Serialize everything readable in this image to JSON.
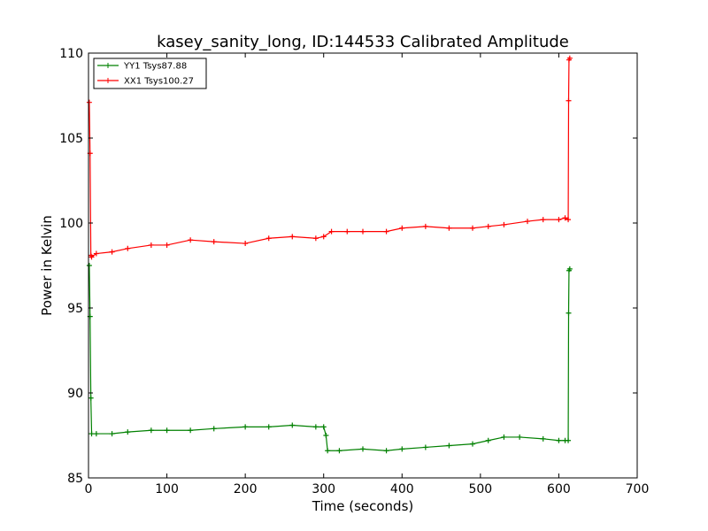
{
  "chart_data": {
    "type": "line",
    "title": "kasey_sanity_long, ID:144533 Calibrated Amplitude",
    "xlabel": "Time (seconds)",
    "ylabel": "Power in Kelvin",
    "xlim": [
      0,
      700
    ],
    "ylim": [
      85,
      110
    ],
    "xticks": [
      0,
      100,
      200,
      300,
      400,
      500,
      600,
      700
    ],
    "yticks": [
      85,
      90,
      95,
      100,
      105,
      110
    ],
    "grid": false,
    "legend_position": "top-left",
    "series": [
      {
        "name": "YY1 Tsys87.88",
        "color": "#008000",
        "x": [
          1,
          2,
          3,
          4,
          10,
          30,
          50,
          80,
          100,
          130,
          160,
          200,
          230,
          260,
          290,
          300,
          303,
          305,
          320,
          350,
          380,
          400,
          430,
          460,
          490,
          510,
          530,
          550,
          580,
          600,
          608,
          612,
          612.5,
          613,
          614
        ],
        "y": [
          97.5,
          94.5,
          89.7,
          87.6,
          87.6,
          87.6,
          87.7,
          87.8,
          87.8,
          87.8,
          87.9,
          88.0,
          88.0,
          88.1,
          88.0,
          88.0,
          87.5,
          86.6,
          86.6,
          86.7,
          86.6,
          86.7,
          86.8,
          86.9,
          87.0,
          87.2,
          87.4,
          87.4,
          87.3,
          87.2,
          87.2,
          87.2,
          94.7,
          97.2,
          97.3
        ]
      },
      {
        "name": "XX1 Tsys100.27",
        "color": "#ff0000",
        "x": [
          1,
          2,
          3,
          4,
          10,
          30,
          50,
          80,
          100,
          130,
          160,
          200,
          230,
          260,
          290,
          300,
          310,
          330,
          350,
          380,
          400,
          430,
          460,
          490,
          510,
          530,
          560,
          580,
          600,
          608,
          612,
          612.5,
          613,
          614
        ],
        "y": [
          107.1,
          104.1,
          98.1,
          98.0,
          98.2,
          98.3,
          98.5,
          98.7,
          98.7,
          99.0,
          98.9,
          98.8,
          99.1,
          99.2,
          99.1,
          99.2,
          99.5,
          99.5,
          99.5,
          99.5,
          99.7,
          99.8,
          99.7,
          99.7,
          99.8,
          99.9,
          100.1,
          100.2,
          100.2,
          100.3,
          100.2,
          107.2,
          109.6,
          109.7
        ]
      }
    ]
  }
}
